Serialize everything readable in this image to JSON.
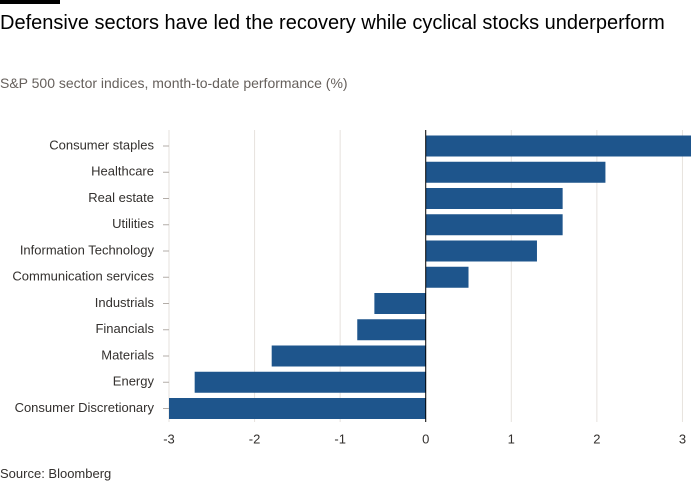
{
  "header": {
    "title": "Defensive sectors have led the recovery while cyclical stocks underperform",
    "subtitle": "S&P 500 sector indices, month-to-date performance (%)"
  },
  "footer": {
    "source": "Source: Bloomberg"
  },
  "colors": {
    "bar": "#1e558c",
    "grid": "#e6e2dd",
    "zero_line": "#000000"
  },
  "chart_data": {
    "type": "bar",
    "orientation": "horizontal",
    "title": "Defensive sectors have led the recovery while cyclical stocks underperform",
    "subtitle": "S&P 500 sector indices, month-to-date performance (%)",
    "categories": [
      "Consumer staples",
      "Healthcare",
      "Real estate",
      "Utilities",
      "Information Technology",
      "Communication services",
      "Industrials",
      "Financials",
      "Materials",
      "Energy",
      "Consumer Discretionary"
    ],
    "values": [
      3.1,
      2.1,
      1.6,
      1.6,
      1.3,
      0.5,
      -0.6,
      -0.8,
      -1.8,
      -2.7,
      -3.0
    ],
    "xlim": [
      -3,
      3.1
    ],
    "ticks": [
      "-3",
      "-2",
      "-1",
      "0",
      "1",
      "2",
      "3"
    ],
    "tick_values": [
      -3,
      -2,
      -1,
      0,
      1,
      2,
      3
    ],
    "grid": true,
    "legend": "none",
    "source": "Source: Bloomberg"
  }
}
